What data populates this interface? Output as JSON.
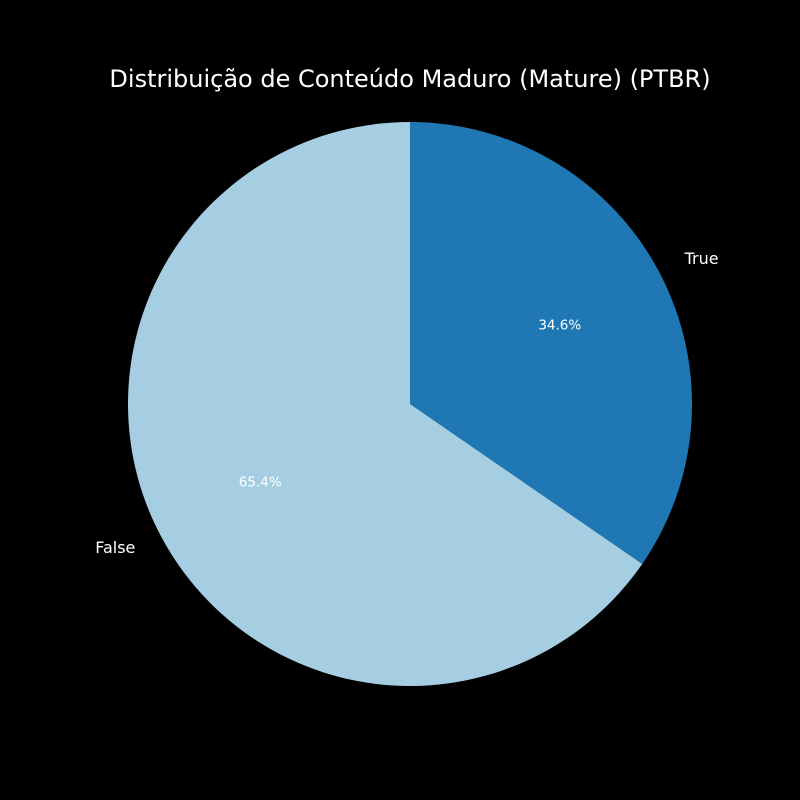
{
  "chart_data": {
    "type": "pie",
    "title": "Distribuição de Conteúdo Maduro (Mature) (PTBR)",
    "start_angle_deg": 90,
    "direction": "clockwise",
    "slices": [
      {
        "label": "True",
        "value": 34.6,
        "pct_label": "34.6%",
        "color": "#1f78b4"
      },
      {
        "label": "False",
        "value": 65.4,
        "pct_label": "65.4%",
        "color": "#a6cee3"
      }
    ],
    "background": "#000000",
    "text_color": "#ffffff"
  }
}
